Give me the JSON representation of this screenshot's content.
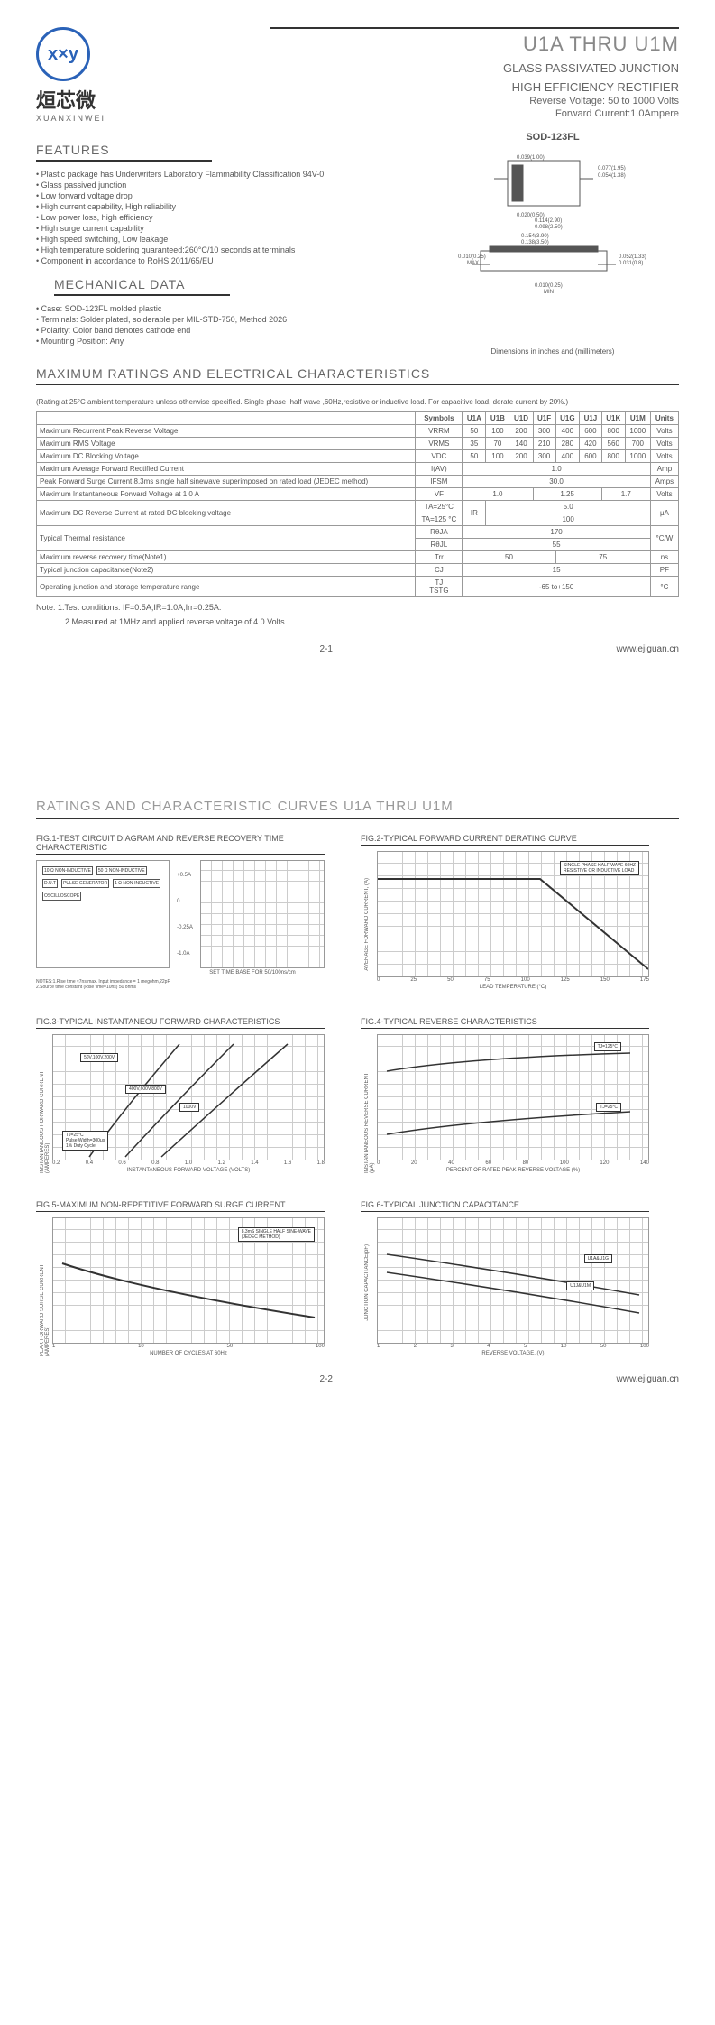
{
  "logo": {
    "glyph": "x×y",
    "cn": "烜芯微",
    "en": "XUANXINWEI"
  },
  "header": {
    "title": "U1A THRU U1M",
    "sub1": "GLASS PASSIVATED JUNCTION",
    "sub2": "HIGH EFFICIENCY RECTIFIER",
    "sub3": "Reverse Voltage: 50 to 1000 Volts",
    "sub4": "Forward Current:1.0Ampere"
  },
  "sections": {
    "features": "FEATURES",
    "mech": "MECHANICAL DATA",
    "max": "MAXIMUM RATINGS AND ELECTRICAL CHARACTERISTICS",
    "curves": "RATINGS AND CHARACTERISTIC CURVES U1A THRU U1M"
  },
  "package": {
    "label": "SOD-123FL",
    "dim_note": "Dimensions in inches and (millimeters)",
    "dims": {
      "a": "0.039(1.00)",
      "b": "0.020(0.50)",
      "c": "0.077(1.95)",
      "d": "0.054(1.38)",
      "e": "0.114(2.90)",
      "f": "0.098(2.50)",
      "g": "0.154(3.90)",
      "h": "0.138(3.50)",
      "i": "0.010(0.25)",
      "j": "MAX",
      "k": "0.052(1.33)",
      "l": "0.031(0.8)",
      "m": "0.010(0.25)",
      "n": "MIN"
    }
  },
  "features_list": [
    "Plastic package has Underwriters Laboratory Flammability Classification 94V-0",
    "Glass passived junction",
    "Low forward voltage drop",
    "High current capability, High reliability",
    "Low power loss, high efficiency",
    "High surge current capability",
    "High speed switching, Low leakage",
    "High temperature soldering guaranteed:260°C/10 seconds at terminals",
    "Component in accordance to RoHS 2011/65/EU"
  ],
  "mech_list": [
    "Case: SOD-123FL molded plastic",
    "Terminals: Solder plated, solderable per MIL-STD-750, Method 2026",
    "Polarity: Color band denotes cathode end",
    "Mounting Position: Any"
  ],
  "ratings_note": "(Rating at 25°C ambient temperature unless otherwise specified. Single phase ,half wave ,60Hz,resistive or inductive load. For capacitive load, derate current by 20%.)",
  "table": {
    "cols": [
      "",
      "Symbols",
      "U1A",
      "U1B",
      "U1D",
      "U1F",
      "U1G",
      "U1J",
      "U1K",
      "U1M",
      "Units"
    ],
    "rows": [
      {
        "label": "Maximum Recurrent Peak Reverse Voltage",
        "sym": "VRRM",
        "vals": [
          "50",
          "100",
          "200",
          "300",
          "400",
          "600",
          "800",
          "1000"
        ],
        "unit": "Volts"
      },
      {
        "label": "Maximum RMS Voltage",
        "sym": "VRMS",
        "vals": [
          "35",
          "70",
          "140",
          "210",
          "280",
          "420",
          "560",
          "700"
        ],
        "unit": "Volts"
      },
      {
        "label": "Maximum DC Blocking Voltage",
        "sym": "VDC",
        "vals": [
          "50",
          "100",
          "200",
          "300",
          "400",
          "600",
          "800",
          "1000"
        ],
        "unit": "Volts"
      },
      {
        "label": "Maximum Average Forward Rectified Current",
        "sym": "I(AV)",
        "span": "1.0",
        "unit": "Amp"
      },
      {
        "label": "Peak Forward Surge Current 8.3ms single half sinewave superimposed on rated load (JEDEC method)",
        "sym": "IFSM",
        "span": "30.0",
        "unit": "Amps"
      },
      {
        "label": "Maximum Instantaneous Forward Voltage at 1.0 A",
        "sym": "VF",
        "tri": [
          "1.0",
          "1.25",
          "1.7"
        ],
        "tri_span": [
          3,
          3,
          2
        ],
        "unit": "Volts"
      },
      {
        "label": "Maximum DC Reverse Current at rated DC blocking voltage",
        "sub1": "TA=25°C",
        "sub2": "TA=125 °C",
        "sym": "IR",
        "v1": "5.0",
        "v2": "100",
        "unit": "μA"
      },
      {
        "label": "Typical Thermal resistance",
        "sym1": "RθJA",
        "sym2": "RθJL",
        "v1": "170",
        "v2": "55",
        "unit": "°C/W"
      },
      {
        "label": "Maximum reverse recovery time(Note1)",
        "sym": "Trr",
        "tri": [
          "50",
          "",
          "75"
        ],
        "tri_span": [
          4,
          0,
          4
        ],
        "unit": "ns"
      },
      {
        "label": "Typical junction capacitance(Note2)",
        "sym": "CJ",
        "span": "15",
        "unit": "PF"
      },
      {
        "label": "Operating junction and storage temperature range",
        "sym": "TJ\nTSTG",
        "span": "-65 to+150",
        "unit": "°C"
      }
    ]
  },
  "notes": {
    "n1": "Note: 1.Test conditions: IF=0.5A,IR=1.0A,Irr=0.25A.",
    "n2": "2.Measured at 1MHz and applied reverse voltage of 4.0 Volts."
  },
  "footer": {
    "pn1": "2-1",
    "pn2": "2-2",
    "url": "www.ejiguan.cn"
  },
  "figs": {
    "f1": {
      "title": "FIG.1-TEST CIRCUIT DIAGRAM AND REVERSE RECOVERY TIME CHARACTERISTIC",
      "diag_labels": [
        "10 Ω NON-INDUCTIVE",
        "50 Ω NON-INDUCTIVE",
        "D.U.T",
        "PULSE GENERATOR",
        "1 Ω NON-INDUCTIVE",
        "OSCILLOSCOPE"
      ],
      "diag_note": "NOTES:1.Rise time ≈7ns max. Input impedance = 1 megohm,22pF\n2.Source time constant (Rise time=10ns) 50 ohms",
      "y_labels": [
        "+0.5A",
        "0",
        "-0.25A",
        "-1.0A"
      ],
      "x_label": "SET TIME BASE FOR 50/100ns/cm"
    },
    "f2": {
      "title": "FIG.2-TYPICAL FORWARD CURRENT DERATING CURVE",
      "y": "AVERAGE FORWARD CURRENT, (A)",
      "x": "LEAD TEMPERATURE (°C)",
      "x_ticks": [
        "0",
        "25",
        "50",
        "75",
        "100",
        "125",
        "150",
        "175"
      ],
      "y_ticks": [
        "0",
        "0.5",
        "1.0",
        "1.5"
      ],
      "box": "SINGLE PHASE HALF WAVE 60HZ\nRESISTIVE OR INDUCTIVE LOAD"
    },
    "f3": {
      "title": "FIG.3-TYPICAL INSTANTANEOU FORWARD CHARACTERISTICS",
      "y": "INSTANTANEOUS FORWARD CURRENT (AMPERES)",
      "x": "INSTANTANEOUS FORWARD VOLTAGE (VOLTS)",
      "x_ticks": [
        "0.2",
        "0.4",
        "0.6",
        "0.8",
        "1.0",
        "1.2",
        "1.4",
        "1.6",
        "1.8"
      ],
      "y_ticks": [
        "0.001",
        "0.01",
        "0.1",
        "1",
        "10"
      ],
      "boxes": [
        "50V,100V,200V",
        "400V,600V,800V",
        "1000V"
      ],
      "note": "TJ=25°C\nPulse Width=300μs\n1% Duty Cycle"
    },
    "f4": {
      "title": "FIG.4-TYPICAL REVERSE CHARACTERISTICS",
      "y": "INSTANTANEOUS REVERSE CURRENT (μA)",
      "x": "PERCENT OF RATED PEAK REVERSE VOLTAGE (%)",
      "x_ticks": [
        "0",
        "20",
        "40",
        "60",
        "80",
        "100",
        "120",
        "140"
      ],
      "y_ticks": [
        "0.01",
        "0.1",
        "1",
        "10",
        "100"
      ],
      "boxes": [
        "TJ=125°C",
        "TJ=25°C"
      ]
    },
    "f5": {
      "title": "FIG.5-MAXIMUM NON-REPETITIVE FORWARD SURGE CURRENT",
      "y": "PEAK FORWARD SURGE CURRENT (AMPERES)",
      "x": "NUMBER OF CYCLES AT 60Hz",
      "x_ticks": [
        "1",
        "10",
        "50",
        "100"
      ],
      "y_ticks": [
        "0",
        "10",
        "20",
        "30",
        "40",
        "50"
      ],
      "box": "8.3mS SINGLE HALF SINE-WAVE\n(JEDEC METHOD)"
    },
    "f6": {
      "title": "FIG.6-TYPICAL JUNCTION CAPACITANCE",
      "y": "JUNCTION CAPACITANCE(pF)",
      "x": "REVERSE VOLTAGE, (V)",
      "x_ticks": [
        "1",
        "2",
        "3",
        "4",
        "5",
        "10",
        "50",
        "100"
      ],
      "y_ticks": [
        "1",
        "10",
        "100"
      ],
      "boxes": [
        "U1A&U1G",
        "U1J&U1M"
      ]
    }
  }
}
